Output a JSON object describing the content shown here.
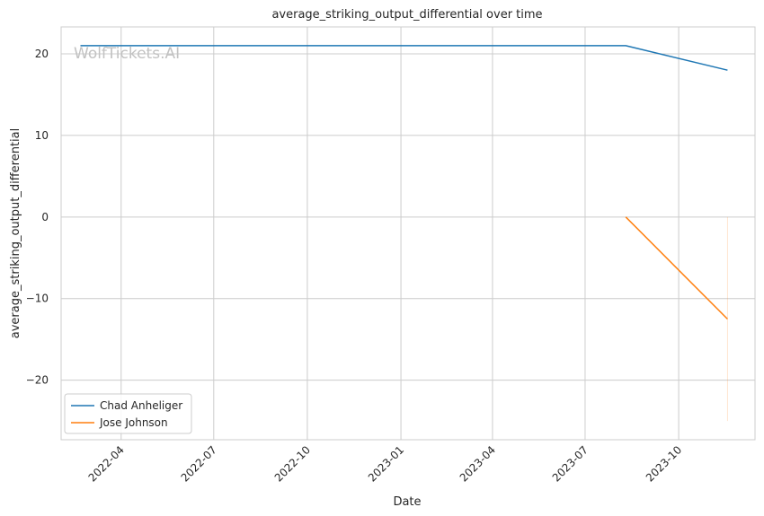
{
  "chart_data": {
    "type": "line",
    "title": "average_striking_output_differential over time",
    "xlabel": "Date",
    "ylabel": "average_striking_output_differential",
    "watermark": "WolfTickets.AI",
    "x_ticks": [
      "2022-04",
      "2022-07",
      "2022-10",
      "2023-01",
      "2023-04",
      "2023-07",
      "2023-10"
    ],
    "y_ticks": [
      20,
      10,
      0,
      -10,
      -20
    ],
    "xlim": [
      "2022-02-01",
      "2023-12-15"
    ],
    "ylim": [
      -27.3,
      23.3
    ],
    "grid": true,
    "legend_position": "lower-left",
    "series": [
      {
        "name": "Chad Anheliger",
        "color": "#1f77b4",
        "points": [
          {
            "x": "2022-02-20",
            "y": 21
          },
          {
            "x": "2023-08-10",
            "y": 21
          },
          {
            "x": "2023-11-18",
            "y": 18
          }
        ]
      },
      {
        "name": "Jose Johnson",
        "color": "#ff7f0e",
        "points": [
          {
            "x": "2023-08-10",
            "y": 0
          },
          {
            "x": "2023-11-18",
            "y": -12.5
          }
        ],
        "band": {
          "x": "2023-11-18",
          "y_low": -25,
          "y_high": 0
        }
      }
    ]
  }
}
